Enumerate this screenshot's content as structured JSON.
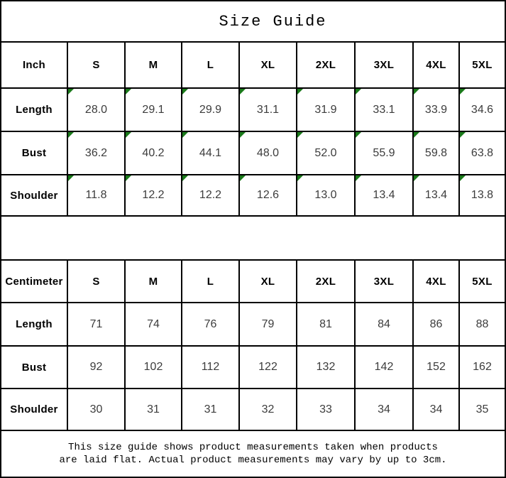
{
  "title": "Size Guide",
  "colors": {
    "corner_marker": "#1a7a1a",
    "grid_line": "#000000",
    "value_text": "#3c3c3c"
  },
  "inch_table": {
    "unit_label": "Inch",
    "sizes": [
      "S",
      "M",
      "L",
      "XL",
      "2XL",
      "3XL",
      "4XL",
      "5XL"
    ],
    "rows": [
      {
        "label": "Length",
        "values": [
          "28.0",
          "29.1",
          "29.9",
          "31.1",
          "31.9",
          "33.1",
          "33.9",
          "34.6"
        ]
      },
      {
        "label": "Bust",
        "values": [
          "36.2",
          "40.2",
          "44.1",
          "48.0",
          "52.0",
          "55.9",
          "59.8",
          "63.8"
        ]
      },
      {
        "label": "Shoulder",
        "values": [
          "11.8",
          "12.2",
          "12.2",
          "12.6",
          "13.0",
          "13.4",
          "13.4",
          "13.8"
        ]
      }
    ],
    "has_corner_markers": true
  },
  "cm_table": {
    "unit_label": "Centimeter",
    "sizes": [
      "S",
      "M",
      "L",
      "XL",
      "2XL",
      "3XL",
      "4XL",
      "5XL"
    ],
    "rows": [
      {
        "label": "Length",
        "values": [
          "71",
          "74",
          "76",
          "79",
          "81",
          "84",
          "86",
          "88"
        ]
      },
      {
        "label": "Bust",
        "values": [
          "92",
          "102",
          "112",
          "122",
          "132",
          "142",
          "152",
          "162"
        ]
      },
      {
        "label": "Shoulder",
        "values": [
          "30",
          "31",
          "31",
          "32",
          "33",
          "34",
          "34",
          "35"
        ]
      }
    ],
    "has_corner_markers": false
  },
  "footer": {
    "line1": "This size guide shows product measurements taken when products",
    "line2": "are laid flat. Actual product measurements may vary by up to 3cm."
  }
}
